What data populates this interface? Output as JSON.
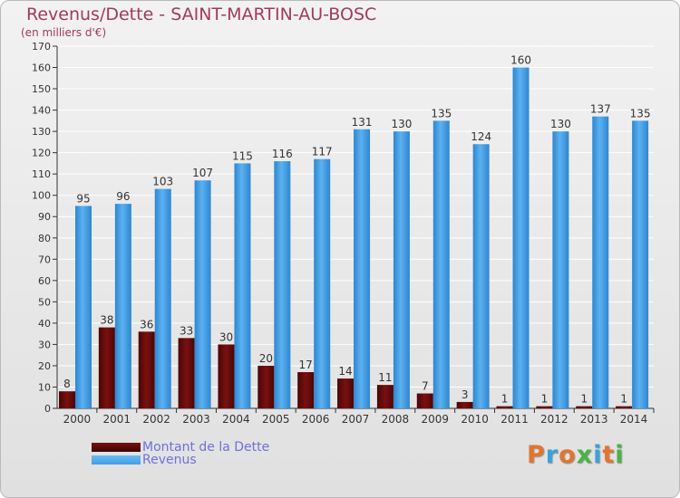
{
  "header": {
    "title": "Revenus/Dette - SAINT-MARTIN-AU-BOSC",
    "subtitle": "(en milliers d'€)"
  },
  "legend": [
    {
      "label": "Montant de la Dette",
      "color": "#7a1010"
    },
    {
      "label": "Revenus",
      "color": "#3f9ee6"
    }
  ],
  "logo": {
    "text": "Proxiti",
    "letter_colors": [
      "#e0762e",
      "#39a3d9",
      "#e0762e",
      "#4ab24a",
      "#39a3d9",
      "#e0762e",
      "#4ab24a"
    ]
  },
  "colors": {
    "title": "#a23a5f",
    "debt_bar": "#7a1010",
    "revenue_bar": "#3f9ee6",
    "grid": "#ffffff",
    "axis": "#333333"
  },
  "chart_data": {
    "type": "bar",
    "title": "Revenus/Dette - SAINT-MARTIN-AU-BOSC",
    "subtitle": "(en milliers d'€)",
    "categories": [
      "2000",
      "2001",
      "2002",
      "2003",
      "2004",
      "2005",
      "2006",
      "2007",
      "2008",
      "2009",
      "2010",
      "2011",
      "2012",
      "2013",
      "2014"
    ],
    "series": [
      {
        "name": "Montant de la Dette",
        "values": [
          8,
          38,
          36,
          33,
          30,
          20,
          17,
          14,
          11,
          7,
          3,
          1,
          1,
          1,
          1
        ]
      },
      {
        "name": "Revenus",
        "values": [
          95,
          96,
          103,
          107,
          115,
          116,
          117,
          131,
          130,
          135,
          124,
          160,
          130,
          137,
          135
        ]
      }
    ],
    "ylim": [
      0,
      170
    ],
    "ytick_step": 10,
    "grid": true,
    "legend_position": "bottom-left",
    "xlabel": "",
    "ylabel": ""
  }
}
